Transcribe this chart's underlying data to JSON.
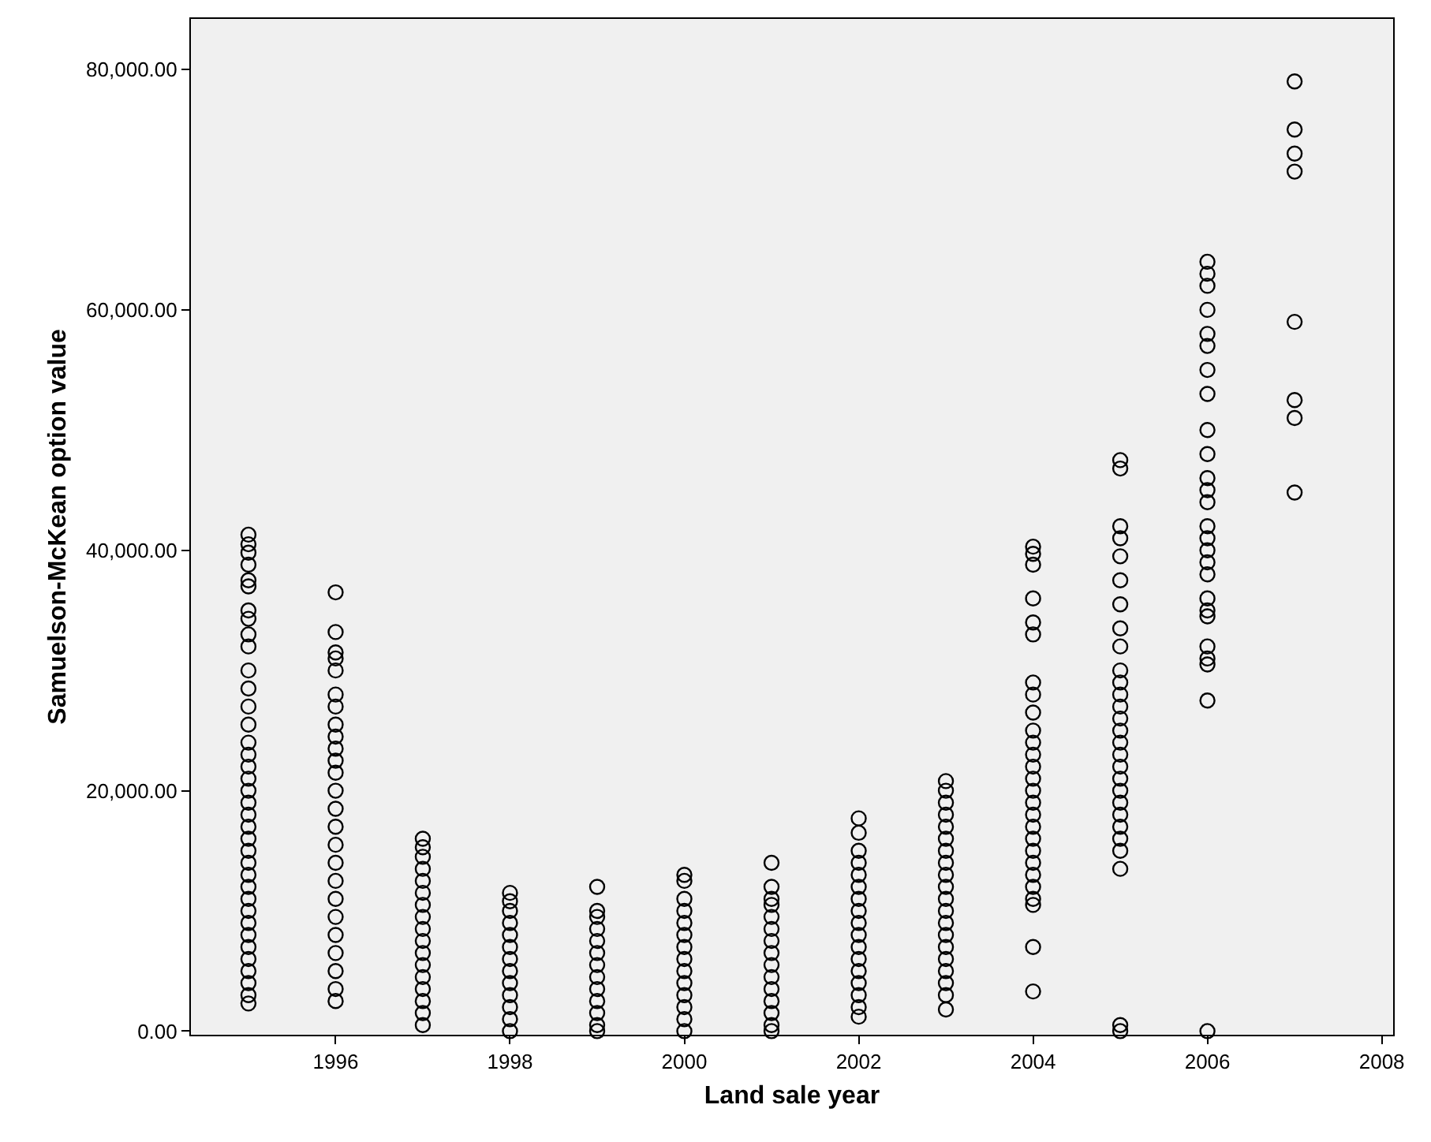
{
  "chart_data": {
    "type": "scatter",
    "xlabel": "Land sale year",
    "ylabel": "Samuelson-McKean option value",
    "xlim": [
      1994.34,
      2008.13
    ],
    "ylim": [
      -300,
      84200
    ],
    "xticks": [
      1996,
      1998,
      2000,
      2002,
      2004,
      2006,
      2008
    ],
    "yticks": [
      {
        "value": 0,
        "label": "0.00"
      },
      {
        "value": 20000,
        "label": "20,000.00"
      },
      {
        "value": 40000,
        "label": "40,000.00"
      },
      {
        "value": 60000,
        "label": "60,000.00"
      },
      {
        "value": 80000,
        "label": "80,000.00"
      }
    ],
    "grid": false,
    "marker": "circle",
    "series": [
      {
        "color": "#000000",
        "x": [
          1995,
          1995,
          1995,
          1995,
          1995,
          1995,
          1995,
          1995,
          1995,
          1995,
          1995,
          1995,
          1995,
          1995,
          1995,
          1995,
          1995,
          1995,
          1995,
          1995,
          1995,
          1995,
          1995,
          1995,
          1995,
          1995,
          1995,
          1995,
          1995,
          1995,
          1995,
          1995,
          1995,
          1995,
          1995,
          1995,
          1995
        ],
        "values": [
          41300,
          40500,
          39800,
          38800,
          37500,
          37000,
          35000,
          34300,
          33000,
          32000,
          30000,
          28500,
          27000,
          25500,
          24000,
          23000,
          22000,
          21000,
          20000,
          19000,
          18000,
          17000,
          16000,
          15000,
          14000,
          13000,
          12000,
          11000,
          10000,
          9000,
          8000,
          7000,
          6000,
          5000,
          4000,
          3000,
          2300
        ]
      },
      {
        "color": "#000000",
        "x": [
          1996,
          1996,
          1996,
          1996,
          1996,
          1996,
          1996,
          1996,
          1996,
          1996,
          1996,
          1996,
          1996,
          1996,
          1996,
          1996,
          1996,
          1996,
          1996,
          1996,
          1996,
          1996,
          1996,
          1996,
          1996
        ],
        "values": [
          36500,
          33200,
          31500,
          31000,
          30000,
          28000,
          27000,
          25500,
          24500,
          23500,
          22500,
          21500,
          20000,
          18500,
          17000,
          15500,
          14000,
          12500,
          11000,
          9500,
          8000,
          6500,
          5000,
          3500,
          2500
        ]
      },
      {
        "color": "#000000",
        "x": [
          1997,
          1997,
          1997,
          1997,
          1997,
          1997,
          1997,
          1997,
          1997,
          1997,
          1997,
          1997,
          1997,
          1997,
          1997,
          1997,
          1997
        ],
        "values": [
          16000,
          15300,
          14500,
          13500,
          12500,
          11500,
          10500,
          9500,
          8500,
          7500,
          6500,
          5500,
          4500,
          3500,
          2500,
          1500,
          500
        ]
      },
      {
        "color": "#000000",
        "x": [
          1998,
          1998,
          1998,
          1998,
          1998,
          1998,
          1998,
          1998,
          1998,
          1998,
          1998,
          1998,
          1998
        ],
        "values": [
          11500,
          10800,
          10000,
          9000,
          8000,
          7000,
          6000,
          5000,
          4000,
          3000,
          2000,
          1000,
          0
        ]
      },
      {
        "color": "#000000",
        "x": [
          1999,
          1999,
          1999,
          1999,
          1999,
          1999,
          1999,
          1999,
          1999,
          1999,
          1999,
          1999,
          1999
        ],
        "values": [
          12000,
          10000,
          9500,
          8500,
          7500,
          6500,
          5500,
          4500,
          3500,
          2500,
          1500,
          500,
          0
        ]
      },
      {
        "color": "#000000",
        "x": [
          2000,
          2000,
          2000,
          2000,
          2000,
          2000,
          2000,
          2000,
          2000,
          2000,
          2000,
          2000,
          2000,
          2000
        ],
        "values": [
          13000,
          12500,
          11000,
          10000,
          9000,
          8000,
          7000,
          6000,
          5000,
          4000,
          3000,
          2000,
          1000,
          0
        ]
      },
      {
        "color": "#000000",
        "x": [
          2001,
          2001,
          2001,
          2001,
          2001,
          2001,
          2001,
          2001,
          2001,
          2001,
          2001,
          2001,
          2001,
          2001,
          2001
        ],
        "values": [
          14000,
          12000,
          11000,
          10500,
          9500,
          8500,
          7500,
          6500,
          5500,
          4500,
          3500,
          2500,
          1500,
          500,
          0
        ]
      },
      {
        "color": "#000000",
        "x": [
          2002,
          2002,
          2002,
          2002,
          2002,
          2002,
          2002,
          2002,
          2002,
          2002,
          2002,
          2002,
          2002,
          2002,
          2002,
          2002,
          2002
        ],
        "values": [
          17700,
          16500,
          15000,
          14000,
          13000,
          12000,
          11000,
          10000,
          9000,
          8000,
          7000,
          6000,
          5000,
          4000,
          3000,
          2000,
          1200
        ]
      },
      {
        "color": "#000000",
        "x": [
          2003,
          2003,
          2003,
          2003,
          2003,
          2003,
          2003,
          2003,
          2003,
          2003,
          2003,
          2003,
          2003,
          2003,
          2003,
          2003,
          2003,
          2003,
          2003,
          2003
        ],
        "values": [
          20800,
          20000,
          19000,
          18000,
          17000,
          16000,
          15000,
          14000,
          13000,
          12000,
          11000,
          10000,
          9000,
          8000,
          7000,
          6000,
          5000,
          4000,
          3000,
          1800
        ]
      },
      {
        "color": "#000000",
        "x": [
          2004,
          2004,
          2004,
          2004,
          2004,
          2004,
          2004,
          2004,
          2004,
          2004,
          2004,
          2004,
          2004,
          2004,
          2004,
          2004,
          2004,
          2004,
          2004,
          2004,
          2004,
          2004,
          2004,
          2004,
          2004,
          2004,
          2004
        ],
        "values": [
          40300,
          39700,
          38800,
          36000,
          34000,
          33000,
          29000,
          28000,
          26500,
          25000,
          24000,
          23000,
          22000,
          21000,
          20000,
          19000,
          18000,
          17000,
          16000,
          15000,
          14000,
          13000,
          12000,
          11000,
          10500,
          7000,
          3300
        ]
      },
      {
        "color": "#000000",
        "x": [
          2005,
          2005,
          2005,
          2005,
          2005,
          2005,
          2005,
          2005,
          2005,
          2005,
          2005,
          2005,
          2005,
          2005,
          2005,
          2005,
          2005,
          2005,
          2005,
          2005,
          2005,
          2005,
          2005,
          2005,
          2005,
          2005,
          2005,
          2005
        ],
        "values": [
          47500,
          46800,
          42000,
          41000,
          39500,
          37500,
          35500,
          33500,
          32000,
          30000,
          29000,
          28000,
          27000,
          26000,
          25000,
          24000,
          23000,
          22000,
          21000,
          20000,
          19000,
          18000,
          17000,
          16000,
          15000,
          13500,
          500,
          0
        ]
      },
      {
        "color": "#000000",
        "x": [
          2006,
          2006,
          2006,
          2006,
          2006,
          2006,
          2006,
          2006,
          2006,
          2006,
          2006,
          2006,
          2006,
          2006,
          2006,
          2006,
          2006,
          2006,
          2006,
          2006,
          2006,
          2006,
          2006,
          2006,
          2006,
          2006
        ],
        "values": [
          64000,
          63000,
          62000,
          60000,
          58000,
          57000,
          55000,
          53000,
          50000,
          48000,
          46000,
          45000,
          44000,
          42000,
          41000,
          40000,
          39000,
          38000,
          36000,
          35000,
          34500,
          32000,
          31000,
          30500,
          27500,
          0
        ]
      },
      {
        "color": "#000000",
        "x": [
          2007,
          2007,
          2007,
          2007,
          2007,
          2007,
          2007,
          2007
        ],
        "values": [
          79000,
          75000,
          73000,
          71500,
          59000,
          52500,
          51000,
          44800
        ]
      }
    ]
  }
}
